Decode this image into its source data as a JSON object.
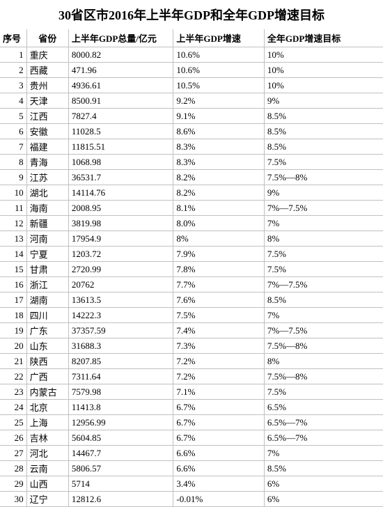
{
  "title": "30省区市2016年上半年GDP和全年GDP增速目标",
  "columns": [
    "序号",
    "省份",
    "上半年GDP总量/亿元",
    "上半年GDP增速",
    "全年GDP增速目标"
  ],
  "rows": [
    [
      "1",
      "重庆",
      "8000.82",
      "10.6%",
      "10%"
    ],
    [
      "2",
      "西藏",
      "471.96",
      "10.6%",
      "10%"
    ],
    [
      "3",
      "贵州",
      "4936.61",
      "10.5%",
      "10%"
    ],
    [
      "4",
      "天津",
      "8500.91",
      "9.2%",
      "9%"
    ],
    [
      "5",
      "江西",
      "7827.4",
      "9.1%",
      "8.5%"
    ],
    [
      "6",
      "安徽",
      "11028.5",
      "8.6%",
      "8.5%"
    ],
    [
      "7",
      "福建",
      "11815.51",
      "8.3%",
      "8.5%"
    ],
    [
      "8",
      "青海",
      "1068.98",
      "8.3%",
      "7.5%"
    ],
    [
      "9",
      "江苏",
      "36531.7",
      "8.2%",
      "7.5%—8%"
    ],
    [
      "10",
      "湖北",
      "14114.76",
      "8.2%",
      "9%"
    ],
    [
      "11",
      "海南",
      "2008.95",
      "8.1%",
      "7%—7.5%"
    ],
    [
      "12",
      "新疆",
      "3819.98",
      "8.0%",
      "7%"
    ],
    [
      "13",
      "河南",
      "17954.9",
      "8%",
      "8%"
    ],
    [
      "14",
      "宁夏",
      "1203.72",
      "7.9%",
      "7.5%"
    ],
    [
      "15",
      "甘肃",
      "2720.99",
      "7.8%",
      "7.5%"
    ],
    [
      "16",
      "浙江",
      "20762",
      "7.7%",
      "7%—7.5%"
    ],
    [
      "17",
      "湖南",
      "13613.5",
      "7.6%",
      "8.5%"
    ],
    [
      "18",
      "四川",
      "14222.3",
      "7.5%",
      "7%"
    ],
    [
      "19",
      "广东",
      "37357.59",
      "7.4%",
      "7%—7.5%"
    ],
    [
      "20",
      "山东",
      "31688.3",
      "7.3%",
      "7.5%—8%"
    ],
    [
      "21",
      "陕西",
      "8207.85",
      "7.2%",
      "8%"
    ],
    [
      "22",
      "广西",
      "7311.64",
      "7.2%",
      "7.5%—8%"
    ],
    [
      "23",
      "内蒙古",
      "7579.98",
      "7.1%",
      "7.5%"
    ],
    [
      "24",
      "北京",
      "11413.8",
      "6.7%",
      "6.5%"
    ],
    [
      "25",
      "上海",
      "12956.99",
      "6.7%",
      "6.5%—7%"
    ],
    [
      "26",
      "吉林",
      "5604.85",
      "6.7%",
      "6.5%—7%"
    ],
    [
      "27",
      "河北",
      "14467.7",
      "6.6%",
      "7%"
    ],
    [
      "28",
      "云南",
      "5806.57",
      "6.6%",
      "8.5%"
    ],
    [
      "29",
      "山西",
      "5714",
      "3.4%",
      "6%"
    ],
    [
      "30",
      "辽宁",
      "12812.6",
      "-0.01%",
      "6%"
    ]
  ]
}
